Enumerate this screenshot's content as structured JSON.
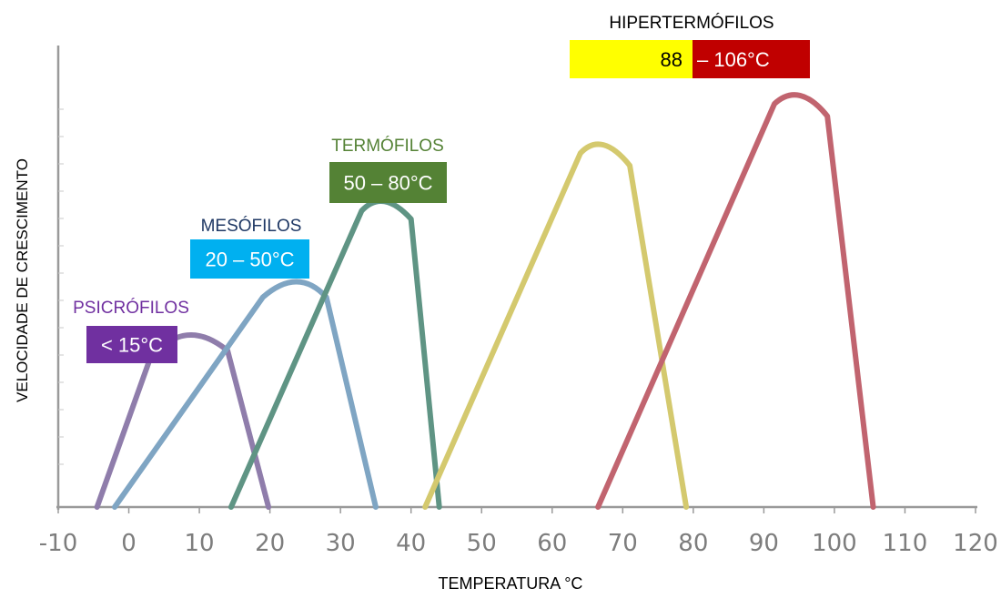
{
  "chart_data": {
    "type": "line",
    "xlabel": "TEMPERATURA °C",
    "ylabel": "VELOCIDADE DE CRESCIMENTO",
    "xlim": [
      -10,
      120
    ],
    "xticks": [
      "-10",
      "0",
      "10",
      "20",
      "30",
      "40",
      "50",
      "60",
      "70",
      "80",
      "90",
      "100",
      "110",
      "120"
    ],
    "grid": false,
    "colors": {
      "psicrofilos": "#8f7dab",
      "mesofilos": "#7fa5c3",
      "termofilos": "#5f9484",
      "hipertermofilos_curve": "#d4c96e",
      "hipertermofilos_extreme": "#c1646f"
    },
    "groups": [
      {
        "name": "PSICRÓFILOS",
        "range": "< 15°C",
        "name_color": "#7030a0",
        "box_color": "#7030a0",
        "text_color": "#ffffff"
      },
      {
        "name": "MESÓFILOS",
        "range": "20 – 50°C",
        "name_color": "#1f3864",
        "box_color": "#00b0f0",
        "text_color": "#ffffff"
      },
      {
        "name": "TERMÓFILOS",
        "range": "50 – 80°C",
        "name_color": "#548235",
        "box_color": "#548235",
        "text_color": "#ffffff"
      },
      {
        "name": "HIPERTERMÓFILOS",
        "range_a": "88",
        "range_b": "– 106°C",
        "name_color": "#000000",
        "box_a_color": "#ffff00",
        "box_b_color": "#c00000",
        "text_a_color": "#000000",
        "text_b_color": "#ffffff"
      }
    ],
    "series": [
      {
        "key": "psicrofilos",
        "x": [
          -4.5,
          3,
          8,
          14,
          19.8
        ],
        "y": [
          0,
          0.36,
          0.43,
          0.38,
          0
        ]
      },
      {
        "key": "mesofilos",
        "x": [
          -2,
          19,
          24,
          28,
          35
        ],
        "y": [
          0,
          0.51,
          0.55,
          0.51,
          0
        ]
      },
      {
        "key": "termofilos",
        "x": [
          14.5,
          33,
          36,
          40,
          44
        ],
        "y": [
          0,
          0.72,
          0.74,
          0.7,
          0
        ]
      },
      {
        "key": "hipertermofilos_curve",
        "x": [
          42,
          64,
          67,
          71,
          79
        ],
        "y": [
          0,
          0.86,
          0.88,
          0.83,
          0
        ]
      },
      {
        "key": "hipertermofilos_extreme",
        "x": [
          66.5,
          91.5,
          95,
          99,
          105.5
        ],
        "y": [
          0,
          0.98,
          1.0,
          0.95,
          0
        ]
      }
    ]
  }
}
